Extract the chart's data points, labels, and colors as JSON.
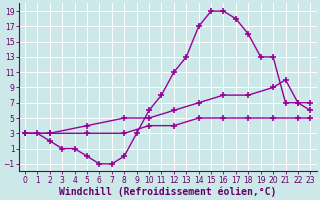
{
  "xlabel": "Windchill (Refroidissement éolien,°C)",
  "bg_color": "#cce8e8",
  "grid_color": "#ffffff",
  "line_color": "#990099",
  "xlim": [
    -0.5,
    23.5
  ],
  "ylim": [
    -2,
    20
  ],
  "xticks": [
    0,
    1,
    2,
    3,
    4,
    5,
    6,
    7,
    8,
    9,
    10,
    11,
    12,
    13,
    14,
    15,
    16,
    17,
    18,
    19,
    20,
    21,
    22,
    23
  ],
  "yticks": [
    -1,
    1,
    3,
    5,
    7,
    9,
    11,
    13,
    15,
    17,
    19
  ],
  "line1_x": [
    0,
    1,
    2,
    3,
    4,
    5,
    6,
    7,
    8,
    9,
    10,
    11,
    12,
    13,
    14,
    15,
    16,
    17,
    18,
    19,
    20,
    21,
    22,
    23
  ],
  "line1_y": [
    3,
    3,
    2,
    1,
    1,
    0,
    -1,
    -1,
    0,
    3,
    6,
    8,
    11,
    13,
    17,
    19,
    19,
    18,
    16,
    13,
    13,
    7,
    7,
    6
  ],
  "line2_x": [
    0,
    2,
    5,
    8,
    10,
    12,
    14,
    16,
    18,
    20,
    21,
    22,
    23
  ],
  "line2_y": [
    3,
    3,
    4,
    5,
    5,
    6,
    7,
    8,
    8,
    9,
    10,
    7,
    7
  ],
  "line3_x": [
    0,
    2,
    5,
    8,
    10,
    12,
    14,
    16,
    18,
    20,
    22,
    23
  ],
  "line3_y": [
    3,
    3,
    3,
    3,
    4,
    4,
    5,
    5,
    5,
    5,
    5,
    5
  ],
  "marker": "+",
  "markersize": 4,
  "linewidth": 1.0,
  "xlabel_fontsize": 7,
  "tick_fontsize": 5.5,
  "xlabel_color": "#660066",
  "tick_color": "#660066",
  "axis_color": "#660066"
}
